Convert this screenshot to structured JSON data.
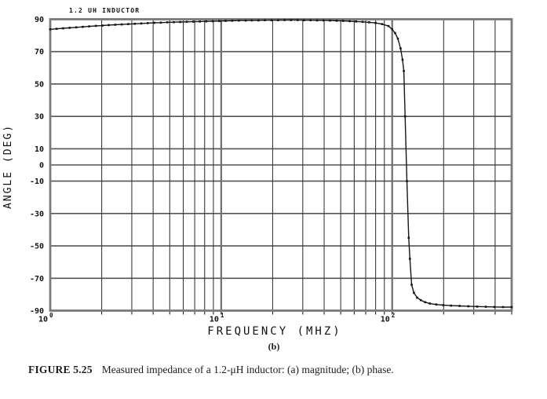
{
  "page": {
    "background": "#ffffff"
  },
  "figure": {
    "caption_label": "FIGURE 5.25",
    "caption_text": "Measured impedance of a 1.2-μH inductor: (a) magnitude; (b) phase.",
    "subfigure_label": "(b)"
  },
  "chart_data": {
    "type": "line",
    "title": "1.2 UH INDUCTOR",
    "xlabel": "FREQUENCY (MHZ)",
    "ylabel": "ANGLE (DEG)",
    "x_scale": "log",
    "xlim": [
      1,
      500
    ],
    "ylim": [
      -90,
      90
    ],
    "grid": true,
    "x_major_ticks": [
      {
        "value": 1,
        "base": "10",
        "exp": "0"
      },
      {
        "value": 10,
        "base": "10",
        "exp": "1"
      },
      {
        "value": 100,
        "base": "10",
        "exp": "2"
      }
    ],
    "y_ticks": [
      {
        "value": 90,
        "label": "90"
      },
      {
        "value": 70,
        "label": "70"
      },
      {
        "value": 50,
        "label": "50"
      },
      {
        "value": 30,
        "label": "30"
      },
      {
        "value": 10,
        "label": "10"
      },
      {
        "value": 0,
        "label": "0"
      },
      {
        "value": -10,
        "label": "-10"
      },
      {
        "value": -30,
        "label": "-30"
      },
      {
        "value": -50,
        "label": "-50"
      },
      {
        "value": -70,
        "label": "-70"
      },
      {
        "value": -90,
        "label": "-90"
      }
    ],
    "colors": {
      "curve": "#161616",
      "minor_grid": "#3a3a3a",
      "major_grid": "#6e6e6e",
      "h_grid": "#555555",
      "border": "#7a7a7a",
      "text": "#111111"
    },
    "series": [
      {
        "name": "phase",
        "marker": "square",
        "points": [
          [
            1.0,
            83.8
          ],
          [
            1.09,
            84.1
          ],
          [
            1.19,
            84.4
          ],
          [
            1.3,
            84.7
          ],
          [
            1.42,
            85.0
          ],
          [
            1.55,
            85.3
          ],
          [
            1.69,
            85.6
          ],
          [
            1.85,
            85.9
          ],
          [
            2.02,
            86.1
          ],
          [
            2.2,
            86.4
          ],
          [
            2.4,
            86.6
          ],
          [
            2.62,
            86.8
          ],
          [
            2.86,
            87.0
          ],
          [
            3.12,
            87.2
          ],
          [
            3.41,
            87.4
          ],
          [
            3.72,
            87.6
          ],
          [
            4.06,
            87.8
          ],
          [
            4.43,
            87.9
          ],
          [
            4.84,
            88.1
          ],
          [
            5.28,
            88.2
          ],
          [
            5.76,
            88.3
          ],
          [
            6.29,
            88.4
          ],
          [
            6.87,
            88.5
          ],
          [
            7.5,
            88.6
          ],
          [
            8.18,
            88.7
          ],
          [
            8.93,
            88.8
          ],
          [
            9.75,
            88.9
          ],
          [
            10.6,
            89.0
          ],
          [
            11.6,
            89.1
          ],
          [
            12.7,
            89.2
          ],
          [
            13.9,
            89.2
          ],
          [
            15.1,
            89.3
          ],
          [
            16.5,
            89.3
          ],
          [
            18.0,
            89.4
          ],
          [
            19.7,
            89.4
          ],
          [
            21.5,
            89.4
          ],
          [
            23.5,
            89.5
          ],
          [
            25.6,
            89.5
          ],
          [
            28.0,
            89.5
          ],
          [
            30.5,
            89.4
          ],
          [
            33.3,
            89.4
          ],
          [
            36.4,
            89.3
          ],
          [
            39.7,
            89.3
          ],
          [
            43.3,
            89.2
          ],
          [
            47.3,
            89.1
          ],
          [
            51.6,
            89.0
          ],
          [
            56.4,
            88.8
          ],
          [
            61.5,
            88.6
          ],
          [
            67.2,
            88.4
          ],
          [
            73.3,
            88.1
          ],
          [
            80.0,
            87.7
          ],
          [
            87.3,
            87.0
          ],
          [
            95.2,
            85.8
          ],
          [
            100,
            83.8
          ],
          [
            104,
            81.5
          ],
          [
            108,
            78.0
          ],
          [
            112,
            72.0
          ],
          [
            115,
            65.0
          ],
          [
            117,
            58.0
          ],
          [
            119,
            30.0
          ],
          [
            122,
            -10.0
          ],
          [
            125,
            -45.0
          ],
          [
            127,
            -58.0
          ],
          [
            130,
            -74.0
          ],
          [
            134,
            -79.0
          ],
          [
            140,
            -82.0
          ],
          [
            147,
            -83.5
          ],
          [
            156,
            -84.8
          ],
          [
            166,
            -85.6
          ],
          [
            181,
            -86.2
          ],
          [
            199,
            -86.6
          ],
          [
            221,
            -86.9
          ],
          [
            248,
            -87.1
          ],
          [
            279,
            -87.3
          ],
          [
            314,
            -87.5
          ],
          [
            353,
            -87.6
          ],
          [
            396,
            -87.7
          ],
          [
            445,
            -87.8
          ],
          [
            500,
            -87.8
          ]
        ]
      }
    ]
  }
}
